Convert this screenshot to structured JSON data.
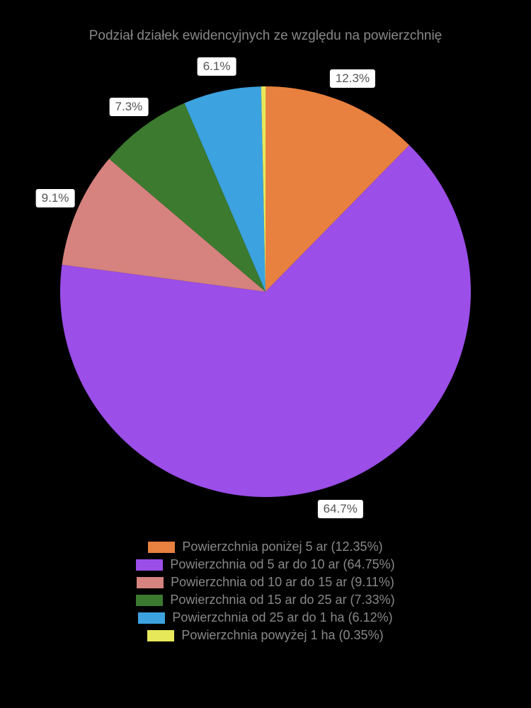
{
  "chart": {
    "type": "pie",
    "title": "Podział działek ewidencyjnych ze względu na powierzchnię",
    "title_color": "#888888",
    "title_fontsize": 19,
    "background_color": "#000000",
    "pie_radius": 290,
    "start_angle_deg": 90,
    "direction": "clockwise",
    "slices": [
      {
        "label": "Powierzchnia poniżej 5 ar",
        "percent": 12.35,
        "color": "#e8803f",
        "short_label": "12.3%",
        "show_callout": true
      },
      {
        "label": "Powierzchnia od 5 ar do 10 ar",
        "percent": 64.75,
        "color": "#9b4ee8",
        "short_label": "64.7%",
        "show_callout": true
      },
      {
        "label": "Powierzchnia od 10 ar do 15 ar",
        "percent": 9.11,
        "color": "#d6827e",
        "short_label": "9.1%",
        "show_callout": true
      },
      {
        "label": "Powierzchnia od 15 ar do 25 ar",
        "percent": 7.33,
        "color": "#3b7a2f",
        "short_label": "7.3%",
        "show_callout": true
      },
      {
        "label": "Powierzchnia od 25 ar do 1 ha",
        "percent": 6.12,
        "color": "#3ca3e0",
        "short_label": "6.1%",
        "show_callout": true
      },
      {
        "label": "Powierzchnia powyżej 1 ha",
        "percent": 0.35,
        "color": "#e6e85a",
        "short_label": "0.4%",
        "show_callout": false
      }
    ],
    "legend_format": "{label} ({percent}%)",
    "label_box_bg": "#ffffff",
    "label_text_color": "#555555",
    "label_fontsize": 17,
    "legend_text_color": "#888888",
    "legend_fontsize": 18,
    "legend_swatch_width": 38,
    "legend_swatch_height": 16
  }
}
